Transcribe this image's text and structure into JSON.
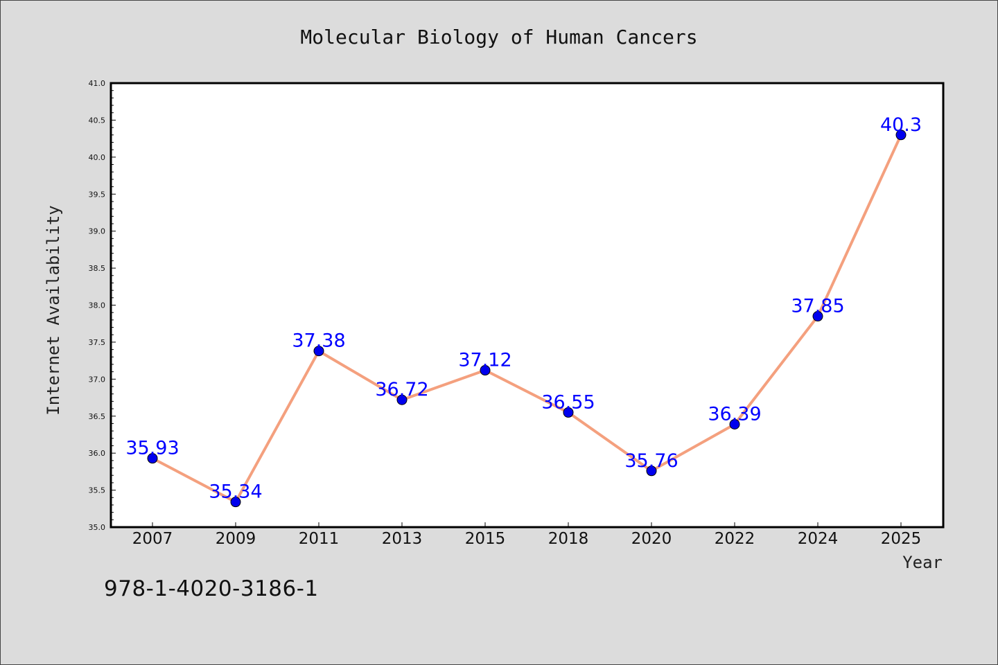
{
  "chart_data": {
    "type": "line",
    "title": "Molecular Biology of Human Cancers",
    "xlabel": "Year",
    "ylabel": "Internet Availability",
    "categories": [
      "2007",
      "2009",
      "2011",
      "2013",
      "2015",
      "2018",
      "2020",
      "2022",
      "2024",
      "2025"
    ],
    "series": [
      {
        "values": [
          35.93,
          35.34,
          37.38,
          36.72,
          37.12,
          36.55,
          35.76,
          36.39,
          37.85,
          40.3
        ],
        "data_labels": [
          "35.93",
          "35.34",
          "37.38",
          "36.72",
          "37.12",
          "36.55",
          "35.76",
          "36.39",
          "37.85",
          "40.3"
        ],
        "line_color": "#f4a07e",
        "marker_color": "#0000ee",
        "label_color": "#0000ff"
      }
    ],
    "ylim": [
      35.0,
      41.0
    ],
    "yticks": [
      "35.0",
      "35.5",
      "36.0",
      "36.5",
      "37.0",
      "37.5",
      "38.0",
      "38.5",
      "39.0",
      "39.5",
      "40.0",
      "40.5",
      "41.0"
    ],
    "grid": false,
    "legend": "none",
    "background_color": "#dcdcdc",
    "plot_background_color": "#ffffff"
  },
  "footer": {
    "isbn": "978-1-4020-3186-1"
  }
}
